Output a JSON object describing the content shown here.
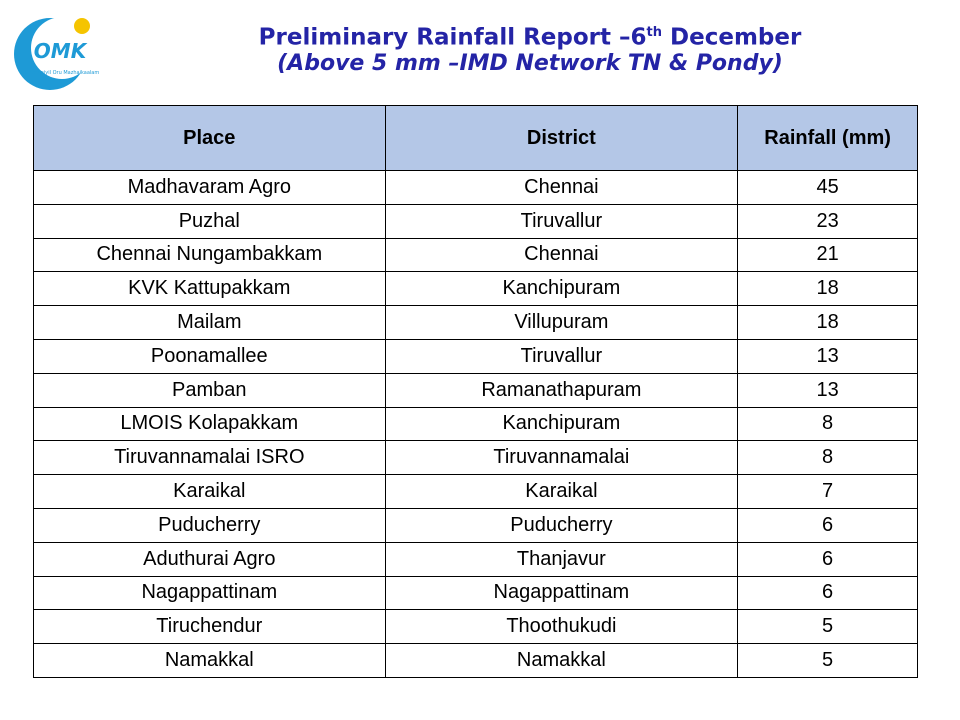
{
  "logo": {
    "mark": "OMK",
    "caption": "Chennaiyil Oru Mazhaikaalam"
  },
  "header": {
    "title": "Preliminary Rainfall Report –6",
    "title_sup": "th",
    "title_end": " December",
    "subtitle": "(Above 5 mm –IMD Network TN & Pondy)"
  },
  "table": {
    "columns": [
      "Place",
      "District",
      "Rainfall (mm)"
    ],
    "rows": [
      [
        "Madhavaram Agro",
        "Chennai",
        45
      ],
      [
        "Puzhal",
        "Tiruvallur",
        23
      ],
      [
        "Chennai Nungambakkam",
        "Chennai",
        21
      ],
      [
        "KVK Kattupakkam",
        "Kanchipuram",
        18
      ],
      [
        "Mailam",
        "Villupuram",
        18
      ],
      [
        "Poonamallee",
        "Tiruvallur",
        13
      ],
      [
        "Pamban",
        "Ramanathapuram",
        13
      ],
      [
        "LMOIS Kolapakkam",
        "Kanchipuram",
        8
      ],
      [
        "Tiruvannamalai ISRO",
        "Tiruvannamalai",
        8
      ],
      [
        "Karaikal",
        "Karaikal",
        7
      ],
      [
        "Puducherry",
        "Puducherry",
        6
      ],
      [
        "Aduthurai Agro",
        "Thanjavur",
        6
      ],
      [
        "Nagappattinam",
        "Nagappattinam",
        6
      ],
      [
        "Tiruchendur",
        "Thoothukudi",
        5
      ],
      [
        "Namakkal",
        "Namakkal",
        5
      ]
    ]
  }
}
